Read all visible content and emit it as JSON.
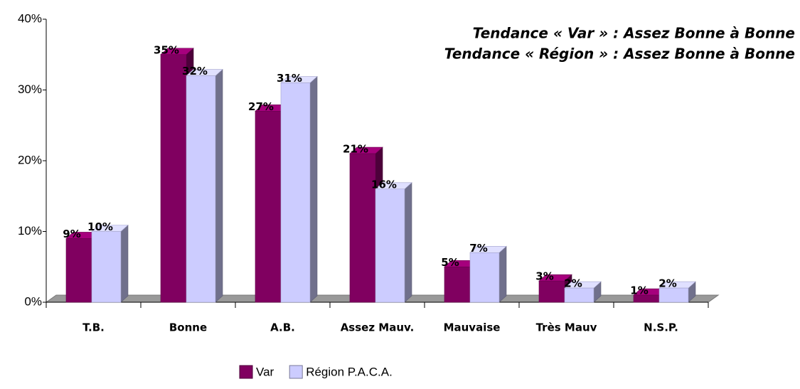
{
  "chart_data": {
    "type": "bar3d",
    "annotations": [
      "Tendance « Var » : Assez Bonne à Bonne",
      "Tendance « Région » : Assez Bonne à Bonne"
    ],
    "categories": [
      "T.B.",
      "Bonne",
      "A.B.",
      "Assez Mauv.",
      "Mauvaise",
      "Très Mauv",
      "N.S.P."
    ],
    "series": [
      {
        "name": "Var",
        "color": "#800060",
        "values": [
          9,
          35,
          27,
          21,
          5,
          3,
          1
        ],
        "value_labels": [
          "9%",
          "35%",
          "27%",
          "21%",
          "5%",
          "3%",
          "1%"
        ]
      },
      {
        "name": "Région P.A.C.A.",
        "color": "#ccccff",
        "values": [
          10,
          32,
          31,
          16,
          7,
          2,
          2
        ],
        "value_labels": [
          "10%",
          "32%",
          "31%",
          "16%",
          "7%",
          "2%",
          "2%"
        ]
      }
    ],
    "ylim": [
      0,
      40
    ],
    "yticks": [
      {
        "value": 0,
        "label": "0%"
      },
      {
        "value": 10,
        "label": "10%"
      },
      {
        "value": 20,
        "label": "20%"
      },
      {
        "value": 30,
        "label": "30%"
      },
      {
        "value": 40,
        "label": "40%"
      }
    ],
    "legend": "bottom"
  }
}
